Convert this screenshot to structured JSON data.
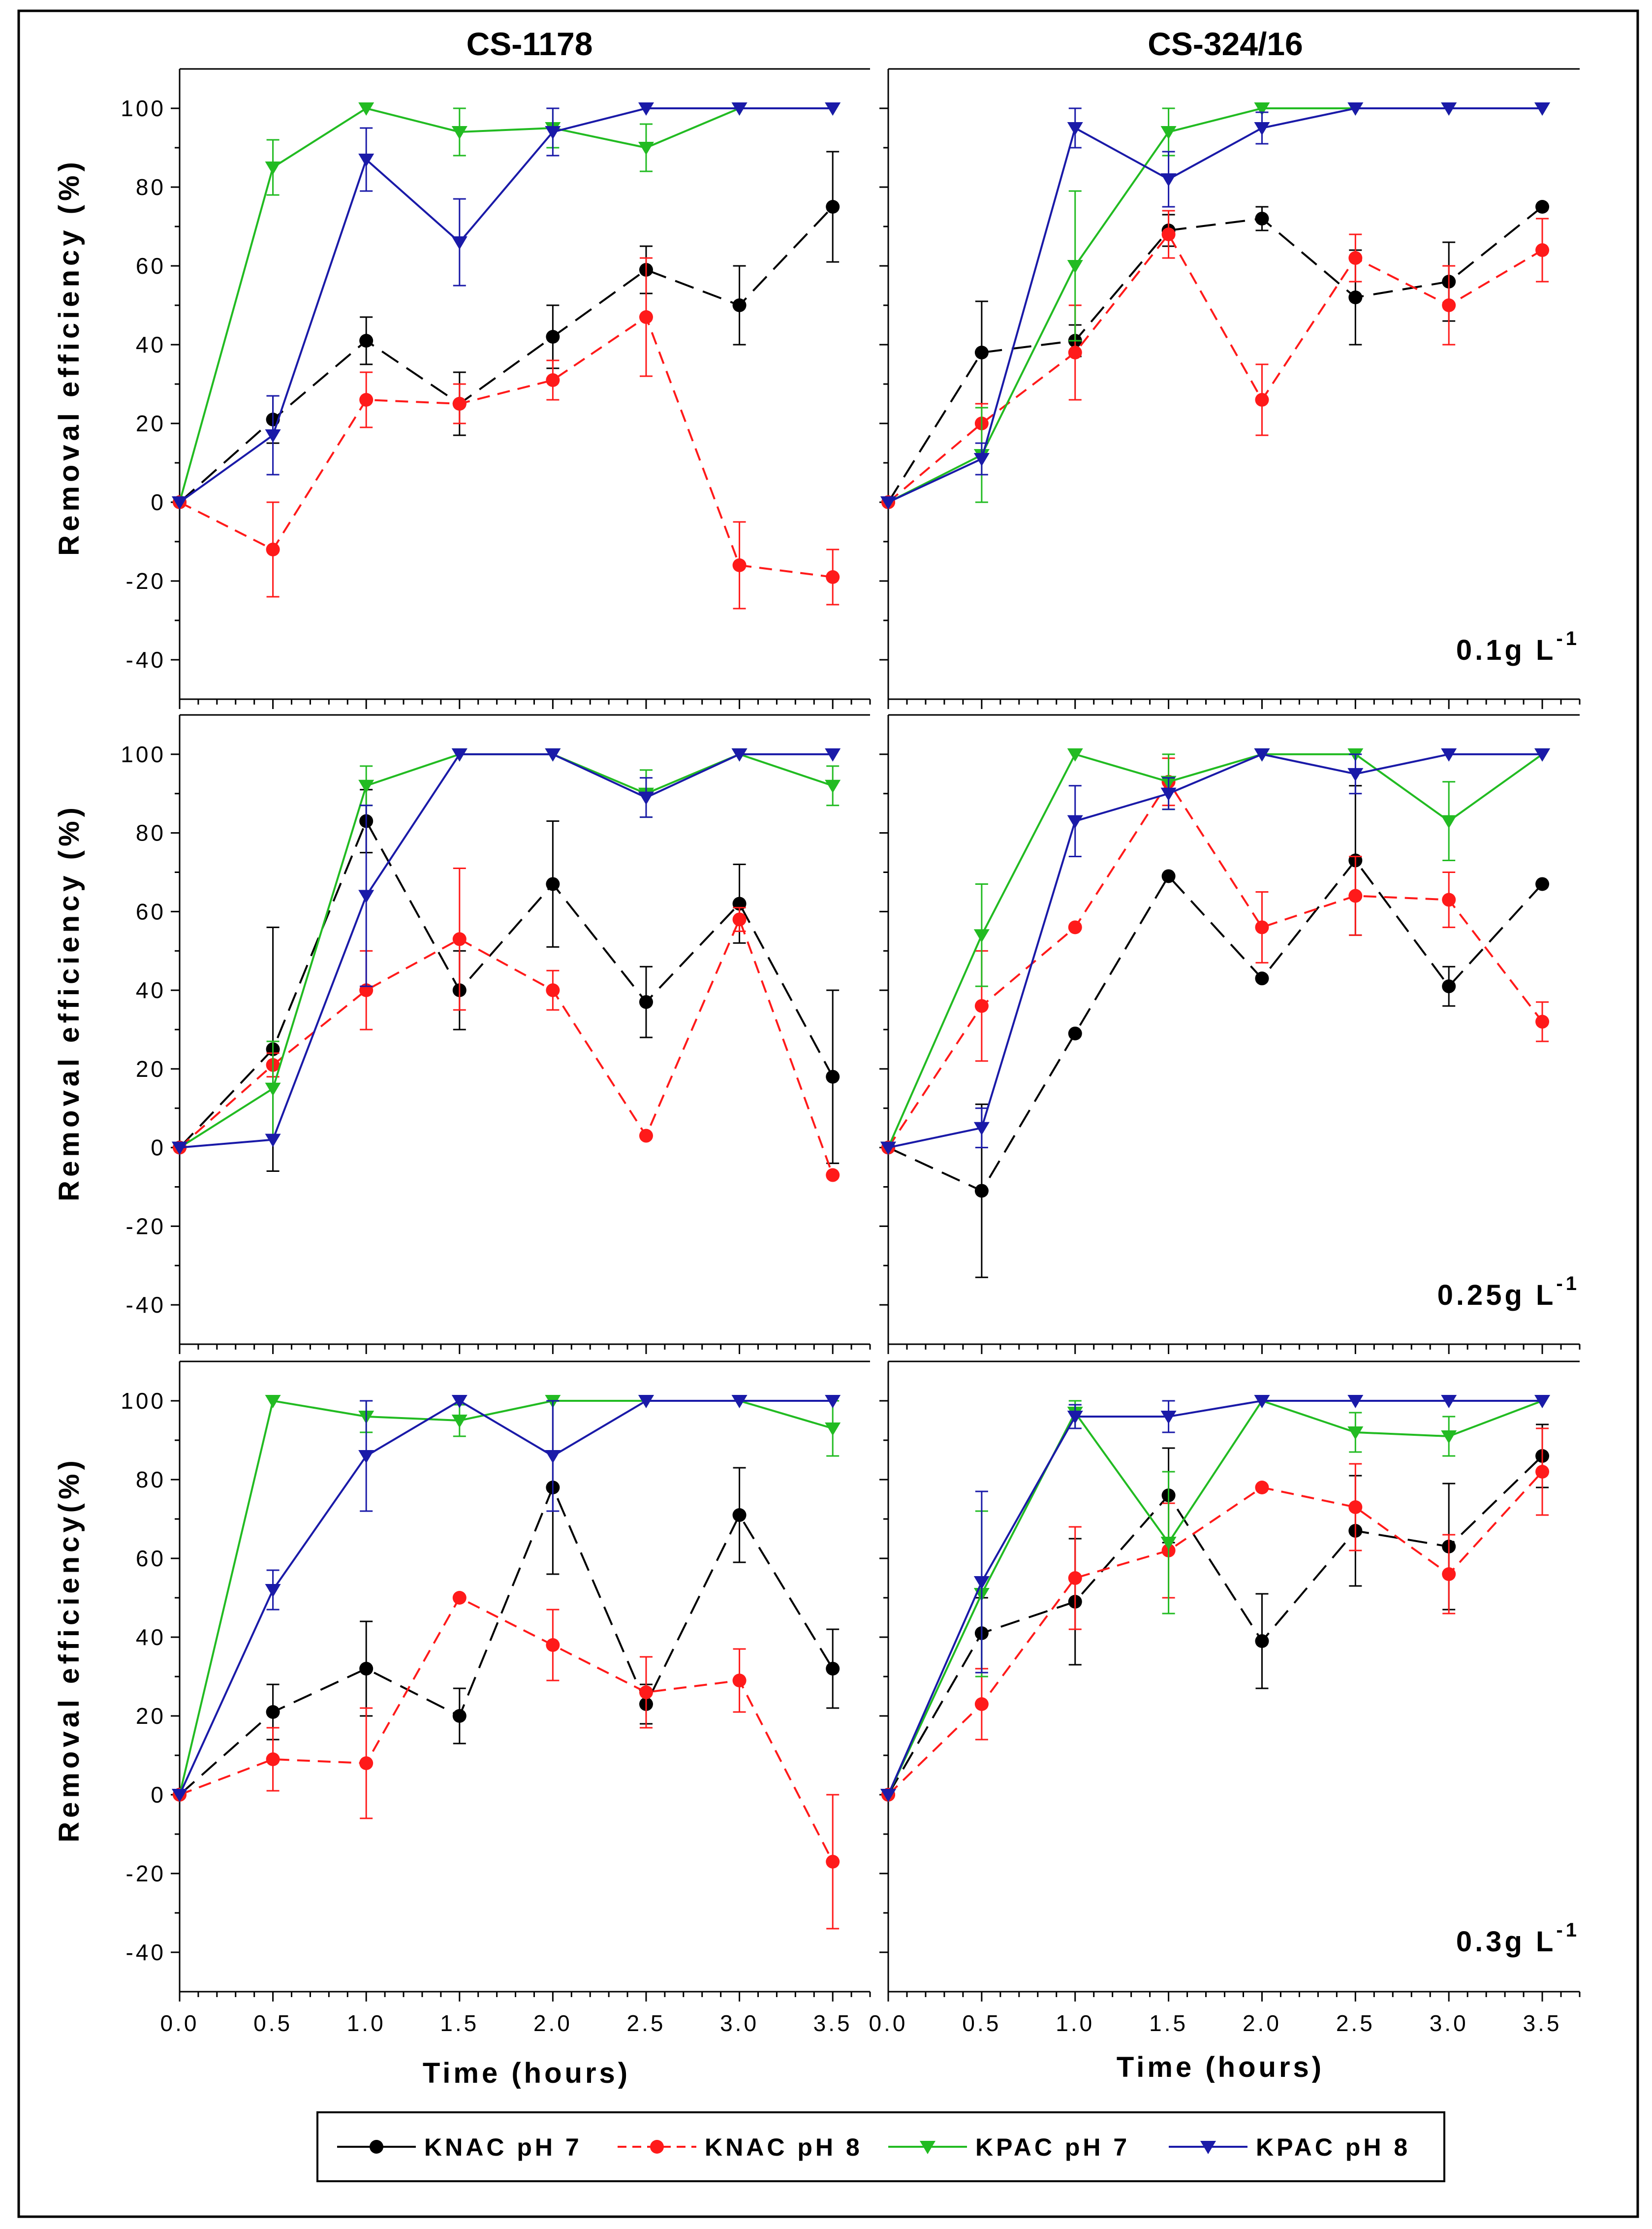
{
  "figure": {
    "columns": [
      "CS-1178",
      "CS-324/16"
    ],
    "y_label_rows": [
      "Removal efficiency (%)",
      "Removal efficiency (%)",
      "Removal efficiency(%)"
    ],
    "x_label": "Time (hours)",
    "dose_labels": [
      {
        "text": "0.1g L",
        "sup": "-1"
      },
      {
        "text": "0.25g L",
        "sup": "-1"
      },
      {
        "text": "0.3g L",
        "sup": "-1"
      }
    ]
  },
  "legend": [
    {
      "label": "KNAC pH 7",
      "color": "#000000",
      "marker": "circle",
      "dash": "long-dash"
    },
    {
      "label": "KNAC pH 8",
      "color": "#ff1a1a",
      "marker": "circle",
      "dash": "dash"
    },
    {
      "label": "KPAC pH 7",
      "color": "#22bb22",
      "marker": "triangle-down",
      "dash": "solid"
    },
    {
      "label": "KPAC pH 8",
      "color": "#1a1aa8",
      "marker": "triangle-down",
      "dash": "solid"
    }
  ],
  "chart_data": [
    {
      "type": "line",
      "row": 0,
      "col": 0,
      "title": "CS-1178",
      "dose": "0.1g L-1",
      "x": [
        0,
        0.5,
        1.0,
        1.5,
        2.0,
        2.5,
        3.0,
        3.5
      ],
      "xlim": [
        0,
        3.7
      ],
      "ylim": [
        -50,
        110
      ],
      "x_ticks": [
        "0.0",
        "0.5",
        "1.0",
        "1.5",
        "2.0",
        "2.5",
        "3.0",
        "3.5"
      ],
      "y_ticks": [
        "100",
        "80",
        "60",
        "40",
        "20",
        "0",
        "-20",
        "-40"
      ],
      "xlabel": "",
      "ylabel": "Removal efficiency (%)",
      "series": [
        {
          "name": "KNAC pH 7",
          "values": [
            0,
            21,
            41,
            25,
            42,
            59,
            50,
            75
          ],
          "errors": [
            0,
            6,
            6,
            8,
            8,
            6,
            10,
            14
          ]
        },
        {
          "name": "KNAC pH 8",
          "values": [
            0,
            -12,
            26,
            25,
            31,
            47,
            -16,
            -19
          ],
          "errors": [
            0,
            12,
            7,
            5,
            5,
            15,
            11,
            7
          ]
        },
        {
          "name": "KPAC pH 7",
          "values": [
            0,
            85,
            100,
            94,
            95,
            90,
            100,
            100
          ],
          "errors": [
            0,
            7,
            0,
            6,
            5,
            6,
            0,
            0
          ]
        },
        {
          "name": "KPAC pH 8",
          "values": [
            0,
            17,
            87,
            66,
            94,
            100,
            100,
            100
          ],
          "errors": [
            0,
            10,
            8,
            11,
            6,
            0,
            0,
            0
          ]
        }
      ]
    },
    {
      "type": "line",
      "row": 0,
      "col": 1,
      "title": "CS-324/16",
      "dose": "0.1g L-1",
      "x": [
        0,
        0.5,
        1.0,
        1.5,
        2.0,
        2.5,
        3.0,
        3.5
      ],
      "xlim": [
        0,
        3.7
      ],
      "ylim": [
        -50,
        110
      ],
      "x_ticks": [
        "0.0",
        "0.5",
        "1.0",
        "1.5",
        "2.0",
        "2.5",
        "3.0",
        "3.5"
      ],
      "y_ticks": [],
      "xlabel": "",
      "ylabel": "",
      "series": [
        {
          "name": "KNAC pH 7",
          "values": [
            0,
            38,
            41,
            69,
            72,
            52,
            56,
            75
          ],
          "errors": [
            0,
            13,
            4,
            4,
            3,
            12,
            10,
            0
          ]
        },
        {
          "name": "KNAC pH 8",
          "values": [
            0,
            20,
            38,
            68,
            26,
            62,
            50,
            64
          ],
          "errors": [
            0,
            5,
            12,
            6,
            9,
            6,
            10,
            8
          ]
        },
        {
          "name": "KPAC pH 7",
          "values": [
            0,
            12,
            60,
            94,
            100,
            100,
            100,
            100
          ],
          "errors": [
            0,
            12,
            19,
            6,
            0,
            0,
            0,
            0
          ]
        },
        {
          "name": "KPAC pH 8",
          "values": [
            0,
            11,
            95,
            82,
            95,
            100,
            100,
            100
          ],
          "errors": [
            0,
            4,
            5,
            7,
            4,
            0,
            0,
            0
          ]
        }
      ]
    },
    {
      "type": "line",
      "row": 1,
      "col": 0,
      "title": "",
      "dose": "0.25g L-1",
      "x": [
        0,
        0.5,
        1.0,
        1.5,
        2.0,
        2.5,
        3.0,
        3.5
      ],
      "xlim": [
        0,
        3.7
      ],
      "ylim": [
        -50,
        110
      ],
      "x_ticks": [
        "0.0",
        "0.5",
        "1.0",
        "1.5",
        "2.0",
        "2.5",
        "3.0",
        "3.5"
      ],
      "y_ticks": [
        "100",
        "80",
        "60",
        "40",
        "20",
        "0",
        "-20",
        "-40"
      ],
      "xlabel": "",
      "ylabel": "Removal efficiency (%)",
      "series": [
        {
          "name": "KNAC pH 7",
          "values": [
            0,
            25,
            83,
            40,
            67,
            37,
            62,
            18
          ],
          "errors": [
            0,
            31,
            8,
            10,
            16,
            9,
            10,
            22
          ]
        },
        {
          "name": "KNAC pH 8",
          "values": [
            0,
            21,
            40,
            53,
            40,
            3,
            58,
            -7
          ],
          "errors": [
            0,
            3,
            10,
            18,
            5,
            0,
            3,
            0
          ]
        },
        {
          "name": "KPAC pH 7",
          "values": [
            0,
            15,
            92,
            100,
            100,
            90,
            100,
            92
          ],
          "errors": [
            0,
            12,
            5,
            0,
            0,
            6,
            0,
            5
          ]
        },
        {
          "name": "KPAC pH 8",
          "values": [
            0,
            2,
            64,
            100,
            100,
            89,
            100,
            100
          ],
          "errors": [
            0,
            0,
            23,
            0,
            0,
            5,
            0,
            0
          ]
        }
      ]
    },
    {
      "type": "line",
      "row": 1,
      "col": 1,
      "title": "",
      "dose": "0.25g L-1",
      "x": [
        0,
        0.5,
        1.0,
        1.5,
        2.0,
        2.5,
        3.0,
        3.5
      ],
      "xlim": [
        0,
        3.7
      ],
      "ylim": [
        -50,
        110
      ],
      "x_ticks": [
        "0.0",
        "0.5",
        "1.0",
        "1.5",
        "2.0",
        "2.5",
        "3.0",
        "3.5"
      ],
      "y_ticks": [],
      "xlabel": "",
      "ylabel": "",
      "series": [
        {
          "name": "KNAC pH 7",
          "values": [
            0,
            -11,
            29,
            69,
            43,
            73,
            41,
            67
          ],
          "errors": [
            0,
            22,
            0,
            0,
            0,
            19,
            5,
            0
          ]
        },
        {
          "name": "KNAC pH 8",
          "values": [
            0,
            36,
            56,
            93,
            56,
            64,
            63,
            32
          ],
          "errors": [
            0,
            14,
            0,
            6,
            9,
            10,
            7,
            5
          ]
        },
        {
          "name": "KPAC pH 7",
          "values": [
            0,
            54,
            100,
            93,
            100,
            100,
            83,
            100
          ],
          "errors": [
            0,
            13,
            0,
            7,
            0,
            0,
            10,
            0
          ]
        },
        {
          "name": "KPAC pH 8",
          "values": [
            0,
            5,
            83,
            90,
            100,
            95,
            100,
            100
          ],
          "errors": [
            0,
            5,
            9,
            4,
            0,
            5,
            0,
            0
          ]
        }
      ]
    },
    {
      "type": "line",
      "row": 2,
      "col": 0,
      "title": "",
      "dose": "0.3g L-1",
      "x": [
        0,
        0.5,
        1.0,
        1.5,
        2.0,
        2.5,
        3.0,
        3.5
      ],
      "xlim": [
        0,
        3.7
      ],
      "ylim": [
        -50,
        110
      ],
      "x_ticks": [
        "0.0",
        "0.5",
        "1.0",
        "1.5",
        "2.0",
        "2.5",
        "3.0",
        "3.5"
      ],
      "y_ticks": [
        "100",
        "80",
        "60",
        "40",
        "20",
        "0",
        "-20",
        "-40"
      ],
      "xlabel": "Time (hours)",
      "ylabel": "Removal efficiency(%)",
      "series": [
        {
          "name": "KNAC pH 7",
          "values": [
            0,
            21,
            32,
            20,
            78,
            23,
            71,
            32
          ],
          "errors": [
            0,
            7,
            12,
            7,
            22,
            5,
            12,
            10
          ]
        },
        {
          "name": "KNAC pH 8",
          "values": [
            0,
            9,
            8,
            50,
            38,
            26,
            29,
            -17
          ],
          "errors": [
            0,
            8,
            14,
            0,
            9,
            9,
            8,
            17
          ]
        },
        {
          "name": "KPAC pH 7",
          "values": [
            0,
            100,
            96,
            95,
            100,
            100,
            100,
            93
          ],
          "errors": [
            0,
            0,
            4,
            4,
            0,
            0,
            0,
            7
          ]
        },
        {
          "name": "KPAC pH 8",
          "values": [
            0,
            52,
            86,
            100,
            86,
            100,
            100,
            100
          ],
          "errors": [
            0,
            5,
            14,
            0,
            14,
            0,
            0,
            0
          ]
        }
      ]
    },
    {
      "type": "line",
      "row": 2,
      "col": 1,
      "title": "",
      "dose": "0.3g L-1",
      "x": [
        0,
        0.5,
        1.0,
        1.5,
        2.0,
        2.5,
        3.0,
        3.5
      ],
      "xlim": [
        0,
        3.7
      ],
      "ylim": [
        -50,
        110
      ],
      "x_ticks": [
        "0.0",
        "0.5",
        "1.0",
        "1.5",
        "2.0",
        "2.5",
        "3.0",
        "3.5"
      ],
      "y_ticks": [],
      "xlabel": "Time (hours)",
      "ylabel": "",
      "series": [
        {
          "name": "KNAC pH 7",
          "values": [
            0,
            41,
            49,
            76,
            39,
            67,
            63,
            86
          ],
          "errors": [
            0,
            9,
            16,
            12,
            12,
            14,
            16,
            8
          ]
        },
        {
          "name": "KNAC pH 8",
          "values": [
            0,
            23,
            55,
            62,
            78,
            73,
            56,
            82
          ],
          "errors": [
            0,
            9,
            13,
            12,
            0,
            11,
            10,
            11
          ]
        },
        {
          "name": "KPAC pH 7",
          "values": [
            0,
            51,
            97,
            64,
            100,
            92,
            91,
            100
          ],
          "errors": [
            0,
            21,
            4,
            18,
            0,
            5,
            5,
            0
          ]
        },
        {
          "name": "KPAC pH 8",
          "values": [
            0,
            54,
            96,
            96,
            100,
            100,
            100,
            100
          ],
          "errors": [
            0,
            23,
            3,
            4,
            0,
            0,
            0,
            0
          ]
        }
      ]
    }
  ]
}
